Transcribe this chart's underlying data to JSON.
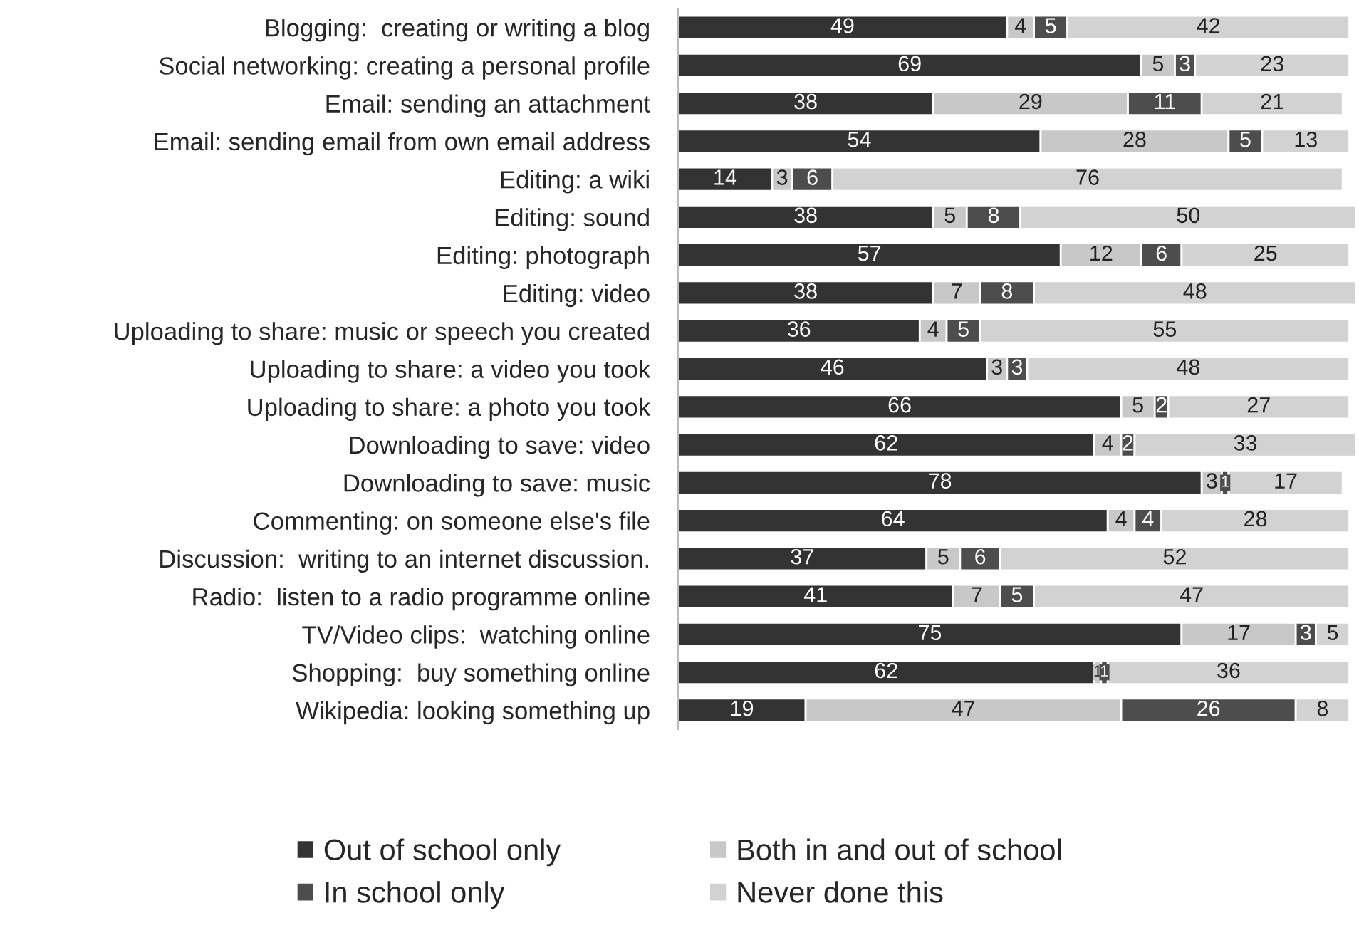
{
  "chart_data": {
    "type": "bar",
    "orientation": "horizontal",
    "stacked": true,
    "data_labels": true,
    "legend": "bottom",
    "grid": false,
    "tick_labels": "y",
    "xlim": [
      0,
      101
    ],
    "categories": [
      "Blogging:  creating or writing a blog",
      "Social networking: creating a personal profile",
      "Email: sending an attachment",
      "Email: sending email from own email address",
      "Editing: a wiki",
      "Editing: sound",
      "Editing: photograph",
      "Editing: video",
      "Uploading to share: music or speech you created",
      "Uploading to share: a video you took",
      "Uploading to share: a photo you took",
      "Downloading to save: video",
      "Downloading to save: music",
      "Commenting: on someone else's file",
      "Discussion:  writing to an internet discussion.",
      "Radio:  listen to a radio programme online",
      "TV/Video clips:  watching online",
      "Shopping:  buy something online",
      "Wikipedia: looking something up"
    ],
    "series": [
      {
        "name": "Out of school only",
        "color": "#333333",
        "values": [
          49,
          69,
          38,
          54,
          14,
          38,
          57,
          38,
          36,
          46,
          66,
          62,
          78,
          64,
          37,
          41,
          75,
          62,
          19
        ]
      },
      {
        "name": "Both in and out of school",
        "color": "#c8c8c8",
        "values": [
          4,
          5,
          29,
          28,
          3,
          5,
          12,
          7,
          4,
          3,
          5,
          4,
          3,
          4,
          5,
          7,
          17,
          1,
          47
        ]
      },
      {
        "name": "In school only",
        "color": "#4d4d4d",
        "values": [
          5,
          3,
          11,
          5,
          6,
          8,
          6,
          8,
          5,
          3,
          2,
          2,
          1,
          4,
          6,
          5,
          3,
          1,
          26
        ]
      },
      {
        "name": "Never done this",
        "color": "#d2d2d2",
        "values": [
          42,
          23,
          21,
          13,
          76,
          50,
          25,
          48,
          55,
          48,
          27,
          33,
          17,
          28,
          52,
          47,
          5,
          36,
          8
        ]
      }
    ]
  }
}
